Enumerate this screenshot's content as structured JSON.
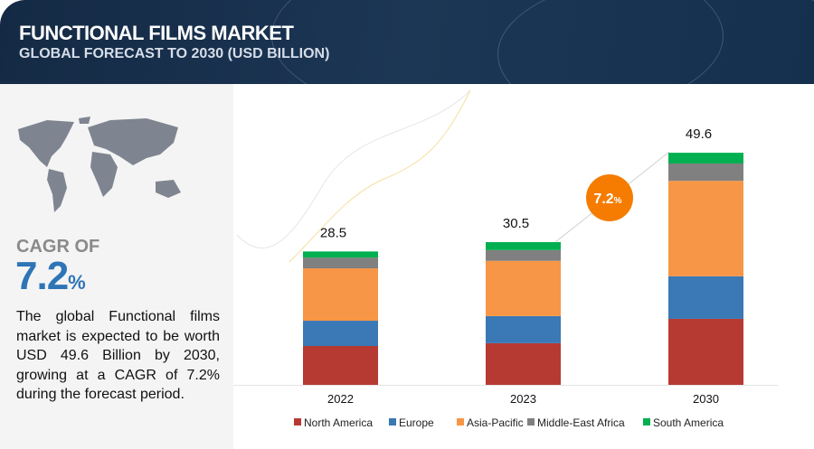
{
  "header": {
    "title": "FUNCTIONAL FILMS MARKET",
    "subtitle": "GLOBAL FORECAST TO 2030 (USD BILLION)"
  },
  "sidebar": {
    "cagr_label": "CAGR OF",
    "cagr_value": "7.2",
    "cagr_unit": "%",
    "description": "The global Functional films market is expected to be worth USD 49.6 Billion by 2030, growing at a CAGR of 7.2% during the forecast period."
  },
  "chart_data": {
    "type": "bar",
    "stacked": true,
    "categories": [
      "2022",
      "2023",
      "2030"
    ],
    "totals": [
      28.5,
      30.5,
      49.6
    ],
    "total_labels": [
      "28.5",
      "30.5",
      "49.6"
    ],
    "series": [
      {
        "name": "North America",
        "color": "#b73a32",
        "values": [
          8.3,
          8.9,
          14.1
        ]
      },
      {
        "name": "Europe",
        "color": "#3a78b6",
        "values": [
          5.4,
          5.8,
          9.1
        ]
      },
      {
        "name": "Asia-Pacific",
        "color": "#f79646",
        "values": [
          11.2,
          11.8,
          20.4
        ]
      },
      {
        "name": "Middle-East Africa",
        "color": "#808080",
        "values": [
          2.3,
          2.3,
          3.7
        ]
      },
      {
        "name": "South America",
        "color": "#00b050",
        "values": [
          1.3,
          1.7,
          2.3
        ]
      }
    ],
    "annotation": {
      "value": "7.2",
      "unit": "%",
      "color": "#f57c00"
    },
    "legend_position": "bottom",
    "grid": false,
    "ylim": [
      0,
      52
    ]
  }
}
